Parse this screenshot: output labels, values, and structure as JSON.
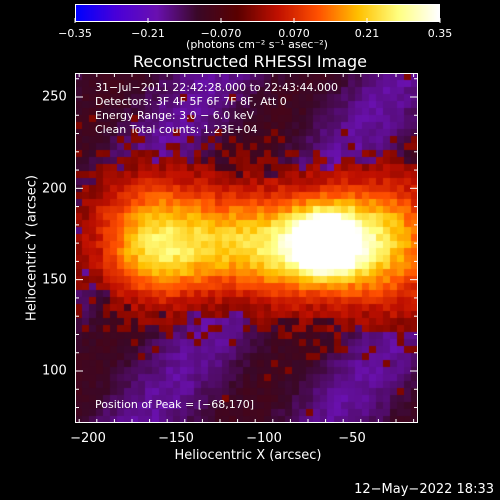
{
  "colorbar": {
    "tick_labels": [
      "−0.35",
      "−0.21",
      "−0.070",
      "0.070",
      "0.21",
      "0.35"
    ],
    "units": "(photons cm⁻² s⁻¹ asec⁻²)",
    "range": [
      -0.35,
      0.35
    ],
    "colormap": [
      "#0000ff",
      "#4a00d8",
      "#6a10b0",
      "#3a0828",
      "#5a0000",
      "#c01000",
      "#ff5000",
      "#ffc000",
      "#ffff80",
      "#ffffff"
    ]
  },
  "title": "Reconstructed RHESSI Image",
  "info": {
    "line1": "31−Jul−2011 22:42:28.000 to 22:43:44.000",
    "line2": "Detectors: 3F 4F 5F 6F 7F 8F, Att 0",
    "line3": "Energy Range: 3.0 − 6.0 keV",
    "line4": "Clean     Total counts: 1.23E+04"
  },
  "peak_label": "Position of Peak = [−68,170]",
  "axes": {
    "xlabel": "Heliocentric X (arcsec)",
    "ylabel": "Heliocentric Y (arcsec)",
    "xticks": [
      "−200",
      "−150",
      "−100",
      "−50"
    ],
    "yticks": [
      "250",
      "200",
      "150",
      "100"
    ]
  },
  "timestamp": "12−May−2022 18:33"
}
